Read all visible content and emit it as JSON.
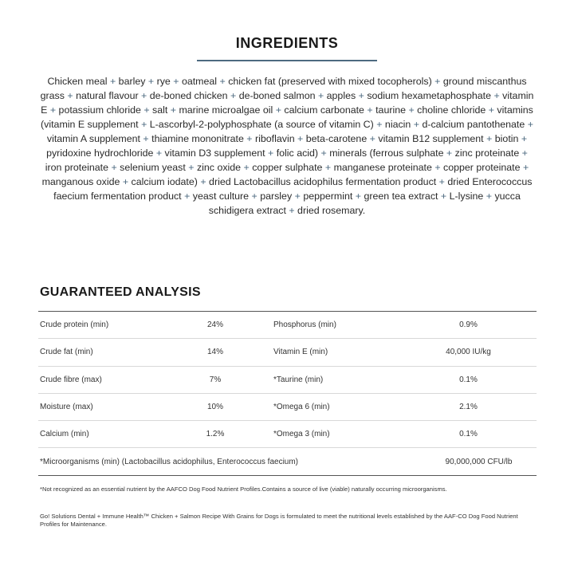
{
  "ingredients": {
    "title": "INGREDIENTS",
    "accent_color": "#4d6a80",
    "items": [
      "Chicken meal",
      "barley",
      "rye",
      "oatmeal",
      "chicken fat (preserved with mixed tocopherols)",
      "ground miscanthus grass",
      "natural flavour",
      "de-boned chicken",
      "de-boned salmon",
      "apples",
      "sodium hexametaphosphate",
      "vitamin E",
      "potassium chloride",
      "salt",
      "marine microalgae oil",
      "calcium carbonate",
      "taurine",
      "choline chloride",
      "vitamins (vitamin E supplement",
      "L-ascorbyl-2-polyphosphate (a source of vitamin C)",
      "niacin",
      "d-calcium pantothenate",
      "vitamin A supplement",
      "thiamine mononitrate",
      "riboflavin",
      "beta-carotene",
      "vitamin B12 supplement",
      "biotin",
      "pyridoxine hydrochloride",
      "vitamin D3 supplement",
      "folic acid)",
      "minerals (ferrous sulphate",
      "zinc proteinate",
      "iron proteinate",
      "selenium yeast",
      "zinc oxide",
      "copper sulphate",
      "manganese proteinate",
      "copper proteinate",
      "manganous oxide",
      "calcium iodate)",
      "dried Lactobacillus acidophilus fermentation product",
      "dried Enterococcus faecium fermentation product",
      "yeast culture",
      "parsley",
      "peppermint",
      "green tea extract",
      "L-lysine",
      "yucca schidigera extract",
      "dried rosemary."
    ]
  },
  "analysis": {
    "title": "GUARANTEED ANALYSIS",
    "rows": [
      {
        "l1": "Crude protein (min)",
        "v1": "24%",
        "l2": "Phosphorus (min)",
        "v2": "0.9%"
      },
      {
        "l1": "Crude fat (min)",
        "v1": "14%",
        "l2": "Vitamin E (min)",
        "v2": "40,000 IU/kg"
      },
      {
        "l1": "Crude fibre (max)",
        "v1": "7%",
        "l2": "*Taurine (min)",
        "v2": "0.1%"
      },
      {
        "l1": "Moisture (max)",
        "v1": "10%",
        "l2": "*Omega 6 (min)",
        "v2": "2.1%"
      },
      {
        "l1": "Calcium (min)",
        "v1": "1.2%",
        "l2": "*Omega 3 (min)",
        "v2": "0.1%"
      }
    ],
    "wide_row": {
      "label": "*Microorganisms (min) (Lactobacillus acidophilus, Enterococcus faecium)",
      "value": "90,000,000 CFU/lb"
    }
  },
  "notes": {
    "footnote": "*Not recognized as an essential nutrient by the AAFCO Dog Food Nutrient Profiles.Contains a source of live (viable) naturally occurring microorganisms.",
    "statement": "Go! Solutions Dental + Immune Health™ Chicken + Salmon Recipe With Grains for Dogs is formulated to meet the nutritional levels established by the AAF-CO Dog Food Nutrient Profiles for Maintenance."
  }
}
